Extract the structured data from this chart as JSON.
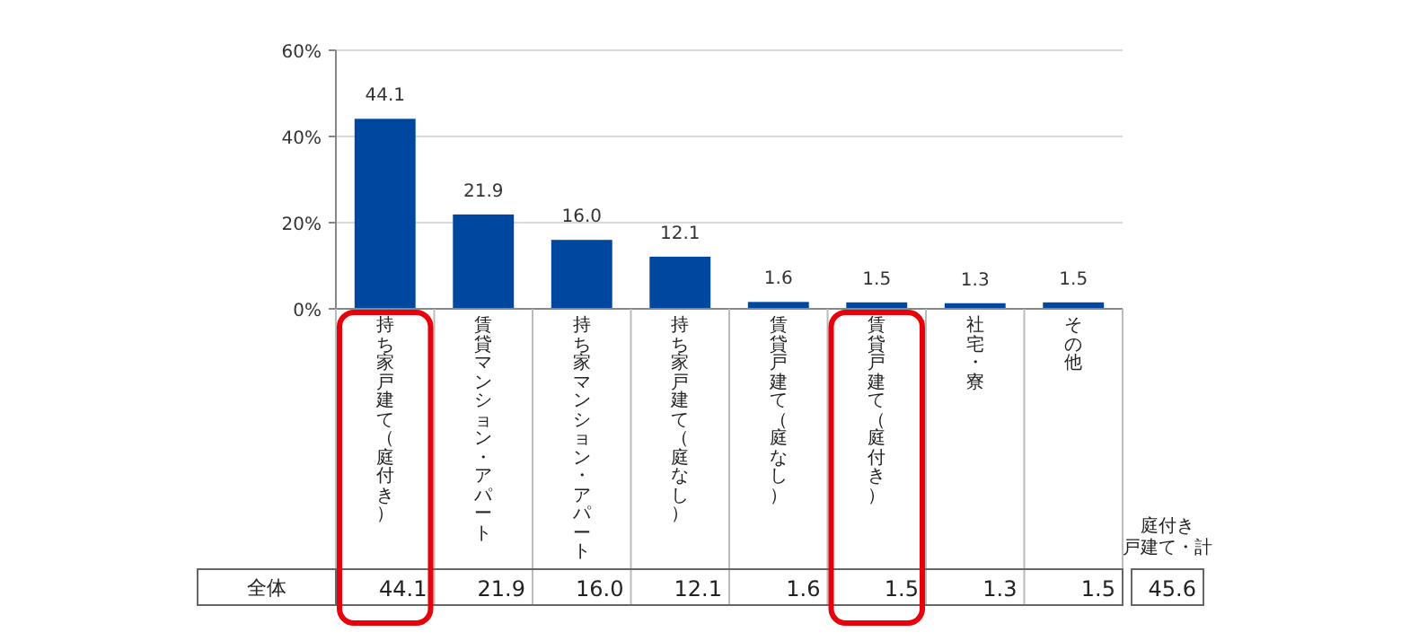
{
  "chart_data": {
    "type": "bar",
    "categories": [
      "持ち家戸建て（庭付き）",
      "賃貸マンション・アパート",
      "持ち家マンション・アパート",
      "持ち家戸建て（庭なし）",
      "賃貸戸建て（庭なし）",
      "賃貸戸建て（庭付き）",
      "社宅・寮",
      "その他"
    ],
    "series": [
      {
        "name": "全体",
        "color": "#0047a0",
        "values": [
          44.1,
          21.9,
          16.0,
          12.1,
          1.6,
          1.5,
          1.3,
          1.5
        ],
        "value_labels": [
          "44.1",
          "21.9",
          "16.0",
          "12.1",
          "1.6",
          "1.5",
          "1.3",
          "1.5"
        ]
      }
    ],
    "ylim": [
      0,
      60
    ],
    "yticks": [
      {
        "value": 0,
        "label": "0%"
      },
      {
        "value": 20,
        "label": "20%"
      },
      {
        "value": 40,
        "label": "40%"
      },
      {
        "value": 60,
        "label": "60%"
      }
    ],
    "grid": "y",
    "data_labels": true,
    "annotations": [
      "庭付き戸建て・計",
      "45.6"
    ]
  }
}
